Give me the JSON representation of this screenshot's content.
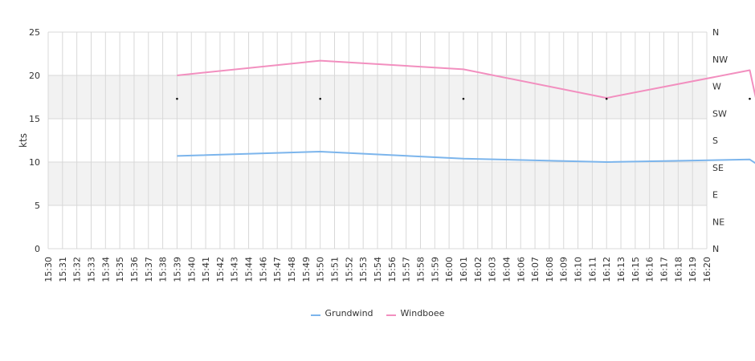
{
  "chart_data": {
    "type": "line",
    "ylabel": "kts",
    "ylim": [
      0,
      25
    ],
    "y_ticks": [
      0,
      5,
      10,
      15,
      20,
      25
    ],
    "bands": [
      [
        5,
        10
      ],
      [
        15,
        20
      ]
    ],
    "direction_labels": [
      "N",
      "NE",
      "E",
      "SE",
      "S",
      "SW",
      "W",
      "NW",
      "N"
    ],
    "x_labels": [
      "15:30",
      "15:31",
      "15:32",
      "15:33",
      "15:34",
      "15:35",
      "15:36",
      "15:37",
      "15:38",
      "15:39",
      "15:40",
      "15:41",
      "15:42",
      "15:43",
      "15:44",
      "15:46",
      "15:47",
      "15:48",
      "15:49",
      "15:50",
      "15:51",
      "15:52",
      "15:53",
      "15:54",
      "15:56",
      "15:57",
      "15:58",
      "15:59",
      "16:00",
      "16:01",
      "16:02",
      "16:03",
      "16:04",
      "16:06",
      "16:07",
      "16:08",
      "16:09",
      "16:10",
      "16:11",
      "16:12",
      "16:13",
      "16:15",
      "16:16",
      "16:17",
      "16:18",
      "16:19",
      "16:20"
    ],
    "series": [
      {
        "name": "Grundwind",
        "color": "#7cb5ec",
        "points": [
          [
            9,
            10.7
          ],
          [
            19,
            11.2
          ],
          [
            29,
            10.4
          ],
          [
            39,
            10.0
          ],
          [
            49,
            10.3
          ],
          [
            50,
            9.2
          ]
        ]
      },
      {
        "name": "Windboee",
        "color": "#f28fbf",
        "points": [
          [
            9,
            20.0
          ],
          [
            19,
            21.7
          ],
          [
            29,
            20.7
          ],
          [
            39,
            17.4
          ],
          [
            49,
            20.6
          ],
          [
            50,
            13.0
          ]
        ]
      }
    ],
    "direction_markers": [
      [
        9,
        17.3
      ],
      [
        19,
        17.3
      ],
      [
        29,
        17.3
      ],
      [
        39,
        17.3
      ],
      [
        49,
        17.3
      ],
      [
        50,
        17.3
      ]
    ],
    "legend_position": "bottom"
  },
  "legend": {
    "item1": "Grundwind",
    "item2": "Windboee",
    "color1": "#7cb5ec",
    "color2": "#f28fbf"
  }
}
